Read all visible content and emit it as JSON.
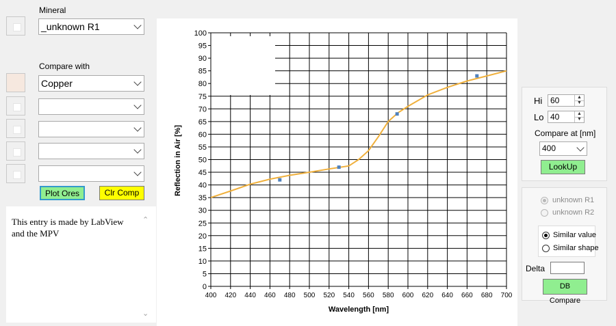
{
  "mineral": {
    "label": "Mineral",
    "selected": "_unknown R1"
  },
  "compare": {
    "label": "Compare with",
    "rows": [
      {
        "value": "Copper"
      },
      {
        "value": ""
      },
      {
        "value": ""
      },
      {
        "value": ""
      },
      {
        "value": ""
      }
    ]
  },
  "buttons": {
    "plot_ores": "Plot Ores",
    "clr_comp": "Clr Comp",
    "lookup": "LookUp",
    "db_compare": "DB Compare"
  },
  "notes": {
    "text": "This entry is made by LabView and the MPV"
  },
  "controls": {
    "hi_label": "Hi",
    "hi_value": "60",
    "lo_label": "Lo",
    "lo_value": "40",
    "compare_at_label": "Compare at [nm]",
    "compare_at_value": "400",
    "radio_unknown_r1": "unknown R1",
    "radio_unknown_r2": "unknown R2",
    "radio_similar_value": "Similar value",
    "radio_similar_shape": "Similar shape",
    "delta_label": "Delta",
    "delta_value": ""
  },
  "colors": {
    "copper_line": "#f0b03c",
    "scatter": "#4f81bd",
    "plot_button": "#90ee90",
    "clr_button": "#ffff00",
    "lookup_button": "#90ee90",
    "db_button": "#90ee90"
  },
  "chart_data": {
    "type": "line",
    "xlabel": "Wavelength [nm]",
    "ylabel": "Reflection in Air [%]",
    "xlim": [
      400,
      700
    ],
    "ylim": [
      0,
      100
    ],
    "x_ticks": [
      "400",
      "420",
      "440",
      "460",
      "480",
      "500",
      "520",
      "540",
      "560",
      "580",
      "600",
      "620",
      "640",
      "660",
      "680",
      "700"
    ],
    "y_ticks": [
      "0",
      "5",
      "10",
      "15",
      "20",
      "25",
      "30",
      "35",
      "40",
      "45",
      "50",
      "55",
      "60",
      "65",
      "70",
      "75",
      "80",
      "85",
      "90",
      "95",
      "100"
    ],
    "grid": true,
    "legend_position": "top-right",
    "series": [
      {
        "name": "_unknown R1",
        "kind": "scatter",
        "x": [
          470,
          530,
          589,
          670
        ],
        "y": [
          42,
          47,
          68,
          83
        ]
      },
      {
        "name": "Copper",
        "kind": "line",
        "x": [
          400,
          420,
          440,
          460,
          480,
          500,
          520,
          540,
          550,
          560,
          570,
          580,
          590,
          600,
          620,
          640,
          660,
          680,
          700
        ],
        "y": [
          35,
          37.6,
          40.3,
          42.3,
          43.8,
          45,
          46.3,
          47.5,
          50,
          53.5,
          59,
          65,
          68.5,
          71,
          75.5,
          78.5,
          81,
          83,
          85
        ]
      }
    ]
  }
}
